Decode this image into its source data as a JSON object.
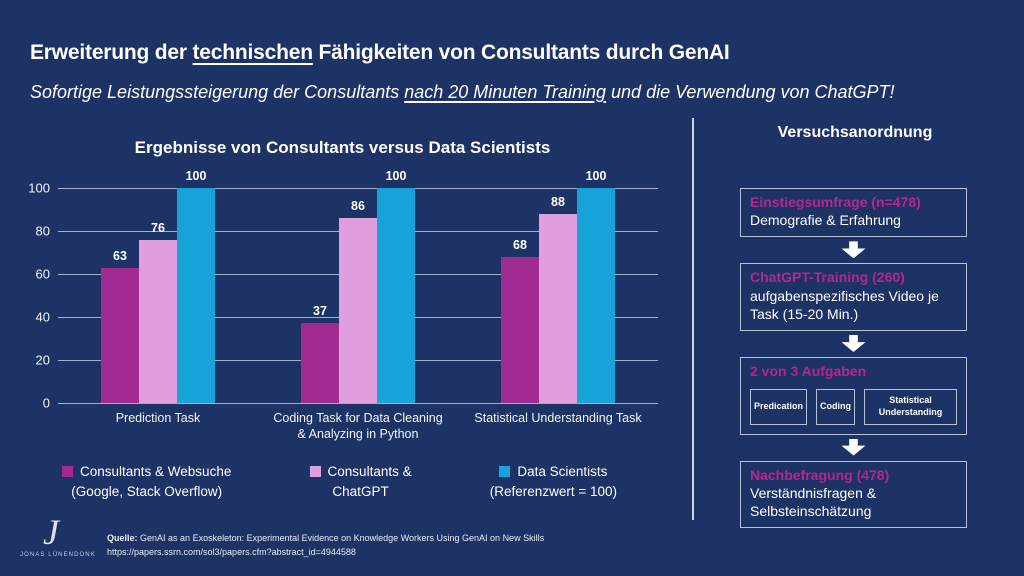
{
  "header": {
    "title": {
      "pre": "Erweiterung der ",
      "underline": "technischen",
      "post": " Fähigkeiten von Consultants durch GenAI"
    },
    "subtitle": {
      "pre": "Sofortige Leistungssteigerung der Consultants ",
      "underline": "nach 20 Minuten Training",
      "post": " und die Verwendung von ChatGPT!"
    }
  },
  "chart_data": {
    "type": "bar",
    "title": "Ergebnisse von Consultants versus Data Scientists",
    "categories": [
      "Prediction Task",
      "Coding Task for Data Cleaning\n& Analyzing in Python",
      "Statistical Understanding Task"
    ],
    "series": [
      {
        "name": "Consultants & Websuche (Google, Stack Overflow)",
        "color": "#a22b91",
        "values": [
          63,
          37,
          68
        ]
      },
      {
        "name": "Consultants & ChatGPT",
        "color": "#df9fdf",
        "values": [
          76,
          86,
          88
        ]
      },
      {
        "name": "Data Scientists (Referenzwert = 100)",
        "color": "#17a2d9",
        "values": [
          100,
          100,
          100
        ]
      }
    ],
    "xlabel": "",
    "ylabel": "",
    "ylim": [
      0,
      100
    ],
    "yticks": [
      0,
      20,
      40,
      60,
      80,
      100
    ],
    "grid": true,
    "data_labels": true,
    "legend_position": "bottom"
  },
  "legend": {
    "items": [
      {
        "line1": "Consultants & Websuche",
        "line2": "(Google, Stack Overflow)"
      },
      {
        "line1": "Consultants &",
        "line2": "ChatGPT"
      },
      {
        "line1": "Data Scientists",
        "line2": "(Referenzwert = 100)"
      }
    ]
  },
  "experiment": {
    "heading": "Versuchsanordnung",
    "boxes": [
      {
        "title": "Einstiegsumfrage (n=478)",
        "body": "Demografie & Erfahrung"
      },
      {
        "title": "ChatGPT-Training (260)",
        "body": "aufgabenspezifisches Video je Task (15-20 Min.)"
      },
      {
        "title": "2 von 3 Aufgaben",
        "tasks": [
          "Predication",
          "Coding",
          "Statistical Understanding"
        ]
      },
      {
        "title": "Nachbefragung (478)",
        "body": "Verständnisfragen & Selbsteinschätzung"
      }
    ]
  },
  "footer": {
    "source_label": "Quelle:",
    "source_text": "GenAI as an Exoskeleton: Experimental Evidence on Knowledge Workers Using GenAI on New Skills",
    "source_url": "https://papers.ssrn.com/sol3/papers.cfm?abstract_id=4944588",
    "logo_initial": "J",
    "logo_name": "JONAS LÜNENDONK"
  },
  "colors": {
    "background": "#1d3366",
    "accent_magenta": "#b3278f",
    "bar_magenta": "#a22b91",
    "bar_pink": "#df9fdf",
    "bar_blue": "#17a2d9",
    "divider": "#c9d3e6"
  }
}
